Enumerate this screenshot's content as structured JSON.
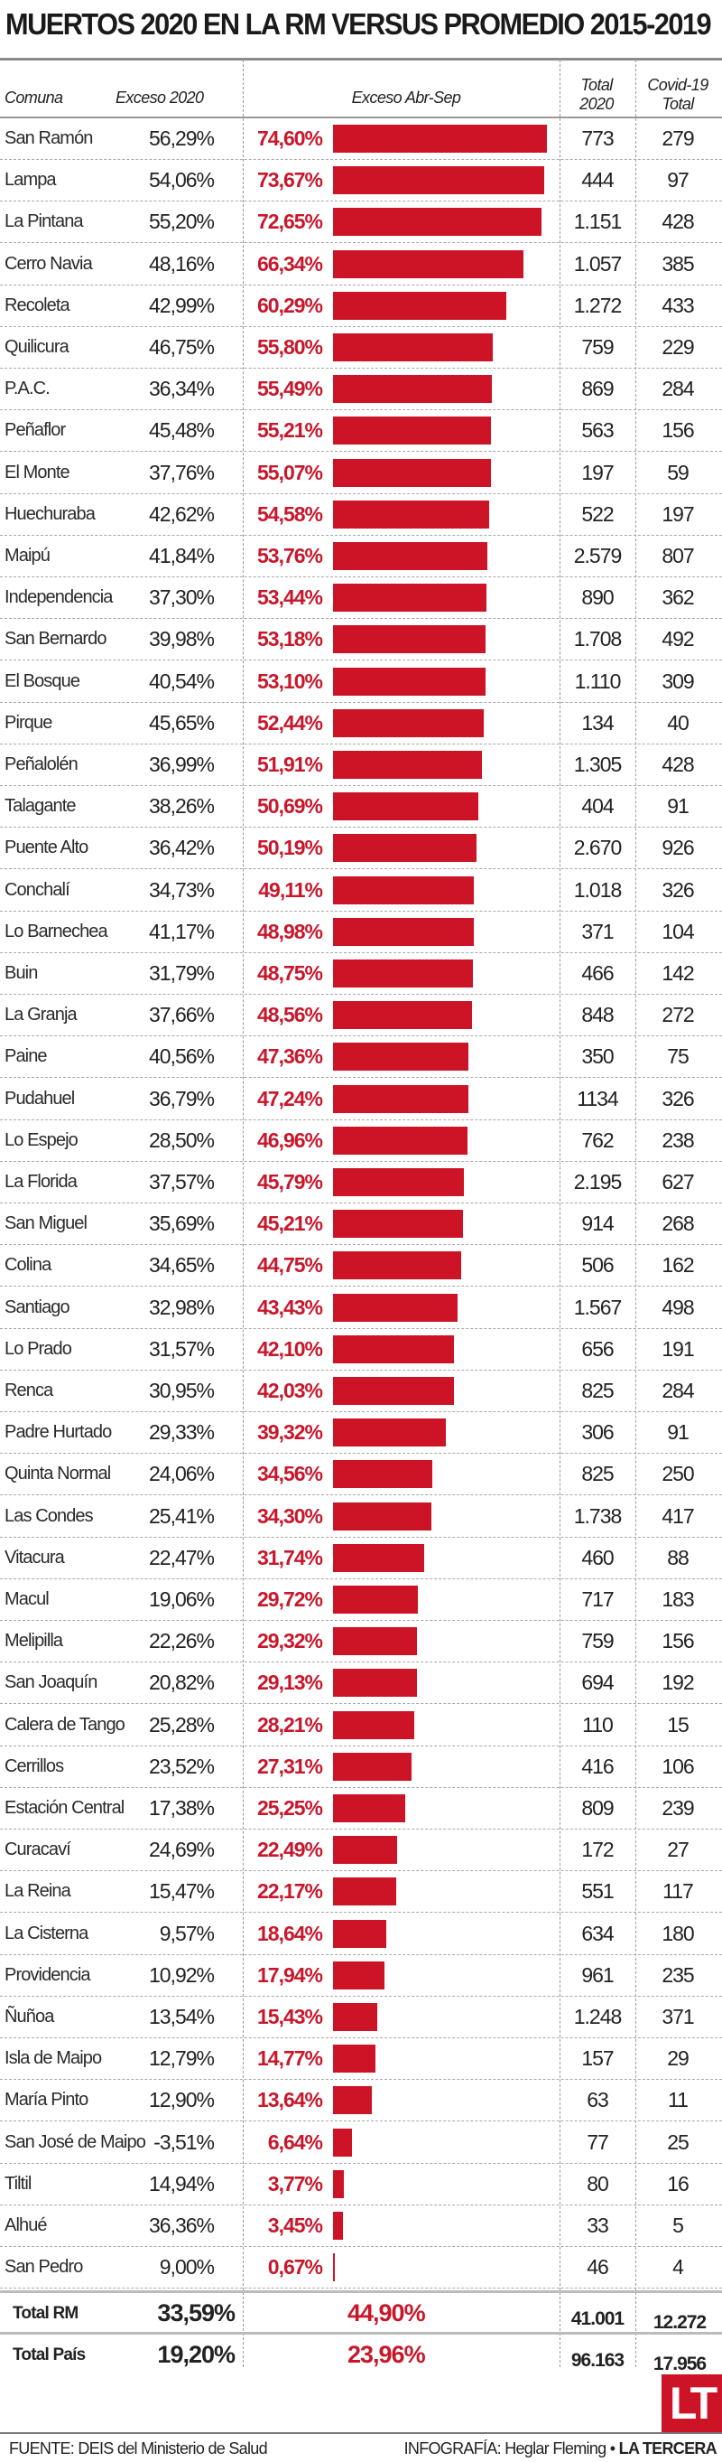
{
  "title": "MUERTOS 2020 EN LA RM VERSUS PROMEDIO 2015-2019",
  "headers": {
    "comuna": "Comuna",
    "exceso2020": "Exceso 2020",
    "exceso_abr_sep": "Exceso Abr-Sep",
    "total2020_line1": "Total",
    "total2020_line2": "2020",
    "covid_line1": "Covid-19",
    "covid_line2": "Total"
  },
  "colors": {
    "bar": "#cc1426",
    "pct_text": "#c8172b"
  },
  "chart_data": {
    "type": "bar",
    "title": "MUERTOS 2020 EN LA RM VERSUS PROMEDIO 2015-2019",
    "xlabel": "Exceso Abr-Sep",
    "ylabel": "Comuna",
    "xlim": [
      0,
      74.6
    ],
    "orientation": "horizontal",
    "rows": [
      {
        "comuna": "San Ramón",
        "exceso2020": "56,29%",
        "pct_label": "74,60%",
        "value": 74.6,
        "total2020": "773",
        "covid": "279"
      },
      {
        "comuna": "Lampa",
        "exceso2020": "54,06%",
        "pct_label": "73,67%",
        "value": 73.67,
        "total2020": "444",
        "covid": "97"
      },
      {
        "comuna": "La Pintana",
        "exceso2020": "55,20%",
        "pct_label": "72,65%",
        "value": 72.65,
        "total2020": "1.151",
        "covid": "428"
      },
      {
        "comuna": "Cerro Navia",
        "exceso2020": "48,16%",
        "pct_label": "66,34%",
        "value": 66.34,
        "total2020": "1.057",
        "covid": "385"
      },
      {
        "comuna": "Recoleta",
        "exceso2020": "42,99%",
        "pct_label": "60,29%",
        "value": 60.29,
        "total2020": "1.272",
        "covid": "433"
      },
      {
        "comuna": "Quilicura",
        "exceso2020": "46,75%",
        "pct_label": "55,80%",
        "value": 55.8,
        "total2020": "759",
        "covid": "229"
      },
      {
        "comuna": "P.A.C.",
        "exceso2020": "36,34%",
        "pct_label": "55,49%",
        "value": 55.49,
        "total2020": "869",
        "covid": "284"
      },
      {
        "comuna": "Peñaflor",
        "exceso2020": "45,48%",
        "pct_label": "55,21%",
        "value": 55.21,
        "total2020": "563",
        "covid": "156"
      },
      {
        "comuna": "El Monte",
        "exceso2020": "37,76%",
        "pct_label": "55,07%",
        "value": 55.07,
        "total2020": "197",
        "covid": "59"
      },
      {
        "comuna": "Huechuraba",
        "exceso2020": "42,62%",
        "pct_label": "54,58%",
        "value": 54.58,
        "total2020": "522",
        "covid": "197"
      },
      {
        "comuna": "Maipú",
        "exceso2020": "41,84%",
        "pct_label": "53,76%",
        "value": 53.76,
        "total2020": "2.579",
        "covid": "807"
      },
      {
        "comuna": "Independencia",
        "exceso2020": "37,30%",
        "pct_label": "53,44%",
        "value": 53.44,
        "total2020": "890",
        "covid": "362"
      },
      {
        "comuna": "San Bernardo",
        "exceso2020": "39,98%",
        "pct_label": "53,18%",
        "value": 53.18,
        "total2020": "1.708",
        "covid": "492"
      },
      {
        "comuna": "El Bosque",
        "exceso2020": "40,54%",
        "pct_label": "53,10%",
        "value": 53.1,
        "total2020": "1.110",
        "covid": "309"
      },
      {
        "comuna": "Pirque",
        "exceso2020": "45,65%",
        "pct_label": "52,44%",
        "value": 52.44,
        "total2020": "134",
        "covid": "40"
      },
      {
        "comuna": "Peñalolén",
        "exceso2020": "36,99%",
        "pct_label": "51,91%",
        "value": 51.91,
        "total2020": "1.305",
        "covid": "428"
      },
      {
        "comuna": "Talagante",
        "exceso2020": "38,26%",
        "pct_label": "50,69%",
        "value": 50.69,
        "total2020": "404",
        "covid": "91"
      },
      {
        "comuna": "Puente Alto",
        "exceso2020": "36,42%",
        "pct_label": "50,19%",
        "value": 50.19,
        "total2020": "2.670",
        "covid": "926"
      },
      {
        "comuna": "Conchalí",
        "exceso2020": "34,73%",
        "pct_label": "49,11%",
        "value": 49.11,
        "total2020": "1.018",
        "covid": "326"
      },
      {
        "comuna": "Lo Barnechea",
        "exceso2020": "41,17%",
        "pct_label": "48,98%",
        "value": 48.98,
        "total2020": "371",
        "covid": "104"
      },
      {
        "comuna": "Buin",
        "exceso2020": "31,79%",
        "pct_label": "48,75%",
        "value": 48.75,
        "total2020": "466",
        "covid": "142"
      },
      {
        "comuna": "La Granja",
        "exceso2020": "37,66%",
        "pct_label": "48,56%",
        "value": 48.56,
        "total2020": "848",
        "covid": "272"
      },
      {
        "comuna": "Paine",
        "exceso2020": "40,56%",
        "pct_label": "47,36%",
        "value": 47.36,
        "total2020": "350",
        "covid": "75"
      },
      {
        "comuna": "Pudahuel",
        "exceso2020": "36,79%",
        "pct_label": "47,24%",
        "value": 47.24,
        "total2020": "1134",
        "covid": "326"
      },
      {
        "comuna": "Lo Espejo",
        "exceso2020": "28,50%",
        "pct_label": "46,96%",
        "value": 46.96,
        "total2020": "762",
        "covid": "238"
      },
      {
        "comuna": "La Florida",
        "exceso2020": "37,57%",
        "pct_label": "45,79%",
        "value": 45.79,
        "total2020": "2.195",
        "covid": "627"
      },
      {
        "comuna": "San Miguel",
        "exceso2020": "35,69%",
        "pct_label": "45,21%",
        "value": 45.21,
        "total2020": "914",
        "covid": "268"
      },
      {
        "comuna": "Colina",
        "exceso2020": "34,65%",
        "pct_label": "44,75%",
        "value": 44.75,
        "total2020": "506",
        "covid": "162"
      },
      {
        "comuna": "Santiago",
        "exceso2020": "32,98%",
        "pct_label": "43,43%",
        "value": 43.43,
        "total2020": "1.567",
        "covid": "498"
      },
      {
        "comuna": "Lo Prado",
        "exceso2020": "31,57%",
        "pct_label": "42,10%",
        "value": 42.1,
        "total2020": "656",
        "covid": "191"
      },
      {
        "comuna": "Renca",
        "exceso2020": "30,95%",
        "pct_label": "42,03%",
        "value": 42.03,
        "total2020": "825",
        "covid": "284"
      },
      {
        "comuna": "Padre Hurtado",
        "exceso2020": "29,33%",
        "pct_label": "39,32%",
        "value": 39.32,
        "total2020": "306",
        "covid": "91"
      },
      {
        "comuna": "Quinta Normal",
        "exceso2020": "24,06%",
        "pct_label": "34,56%",
        "value": 34.56,
        "total2020": "825",
        "covid": "250"
      },
      {
        "comuna": "Las Condes",
        "exceso2020": "25,41%",
        "pct_label": "34,30%",
        "value": 34.3,
        "total2020": "1.738",
        "covid": "417"
      },
      {
        "comuna": "Vitacura",
        "exceso2020": "22,47%",
        "pct_label": "31,74%",
        "value": 31.74,
        "total2020": "460",
        "covid": "88"
      },
      {
        "comuna": "Macul",
        "exceso2020": "19,06%",
        "pct_label": "29,72%",
        "value": 29.72,
        "total2020": "717",
        "covid": "183"
      },
      {
        "comuna": "Melipilla",
        "exceso2020": "22,26%",
        "pct_label": "29,32%",
        "value": 29.32,
        "total2020": "759",
        "covid": "156"
      },
      {
        "comuna": "San Joaquín",
        "exceso2020": "20,82%",
        "pct_label": "29,13%",
        "value": 29.13,
        "total2020": "694",
        "covid": "192"
      },
      {
        "comuna": "Calera de Tango",
        "exceso2020": "25,28%",
        "pct_label": "28,21%",
        "value": 28.21,
        "total2020": "110",
        "covid": "15"
      },
      {
        "comuna": "Cerrillos",
        "exceso2020": "23,52%",
        "pct_label": "27,31%",
        "value": 27.31,
        "total2020": "416",
        "covid": "106"
      },
      {
        "comuna": "Estación Central",
        "exceso2020": "17,38%",
        "pct_label": "25,25%",
        "value": 25.25,
        "total2020": "809",
        "covid": "239"
      },
      {
        "comuna": "Curacaví",
        "exceso2020": "24,69%",
        "pct_label": "22,49%",
        "value": 22.49,
        "total2020": "172",
        "covid": "27"
      },
      {
        "comuna": "La Reina",
        "exceso2020": "15,47%",
        "pct_label": "22,17%",
        "value": 22.17,
        "total2020": "551",
        "covid": "117"
      },
      {
        "comuna": "La Cisterna",
        "exceso2020": "9,57%",
        "pct_label": "18,64%",
        "value": 18.64,
        "total2020": "634",
        "covid": "180"
      },
      {
        "comuna": "Providencia",
        "exceso2020": "10,92%",
        "pct_label": "17,94%",
        "value": 17.94,
        "total2020": "961",
        "covid": "235"
      },
      {
        "comuna": "Ñuñoa",
        "exceso2020": "13,54%",
        "pct_label": "15,43%",
        "value": 15.43,
        "total2020": "1.248",
        "covid": "371"
      },
      {
        "comuna": "Isla de Maipo",
        "exceso2020": "12,79%",
        "pct_label": "14,77%",
        "value": 14.77,
        "total2020": "157",
        "covid": "29"
      },
      {
        "comuna": "María Pinto",
        "exceso2020": "12,90%",
        "pct_label": "13,64%",
        "value": 13.64,
        "total2020": "63",
        "covid": "11"
      },
      {
        "comuna": "San José de Maipo",
        "exceso2020": "-3,51%",
        "pct_label": "6,64%",
        "value": 6.64,
        "total2020": "77",
        "covid": "25"
      },
      {
        "comuna": "Tiltil",
        "exceso2020": "14,94%",
        "pct_label": "3,77%",
        "value": 3.77,
        "total2020": "80",
        "covid": "16"
      },
      {
        "comuna": "Alhué",
        "exceso2020": "36,36%",
        "pct_label": "3,45%",
        "value": 3.45,
        "total2020": "33",
        "covid": "5"
      },
      {
        "comuna": "San Pedro",
        "exceso2020": "9,00%",
        "pct_label": "0,67%",
        "value": 0.67,
        "total2020": "46",
        "covid": "4"
      }
    ],
    "totals": [
      {
        "label": "Total RM",
        "exceso2020": "33,59%",
        "pct_label": "44,90%",
        "total2020": "41.001",
        "covid": "12.272"
      },
      {
        "label": "Total País",
        "exceso2020": "19,20%",
        "pct_label": "23,96%",
        "total2020": "96.163",
        "covid": "17.956"
      }
    ]
  },
  "logo_text": "LT",
  "footer": {
    "source": "FUENTE:  DEIS del Ministerio de Salud",
    "credit_prefix": "INFOGRAFÍA: Heglar Fleming • ",
    "credit_brand": "LA TERCERA"
  }
}
